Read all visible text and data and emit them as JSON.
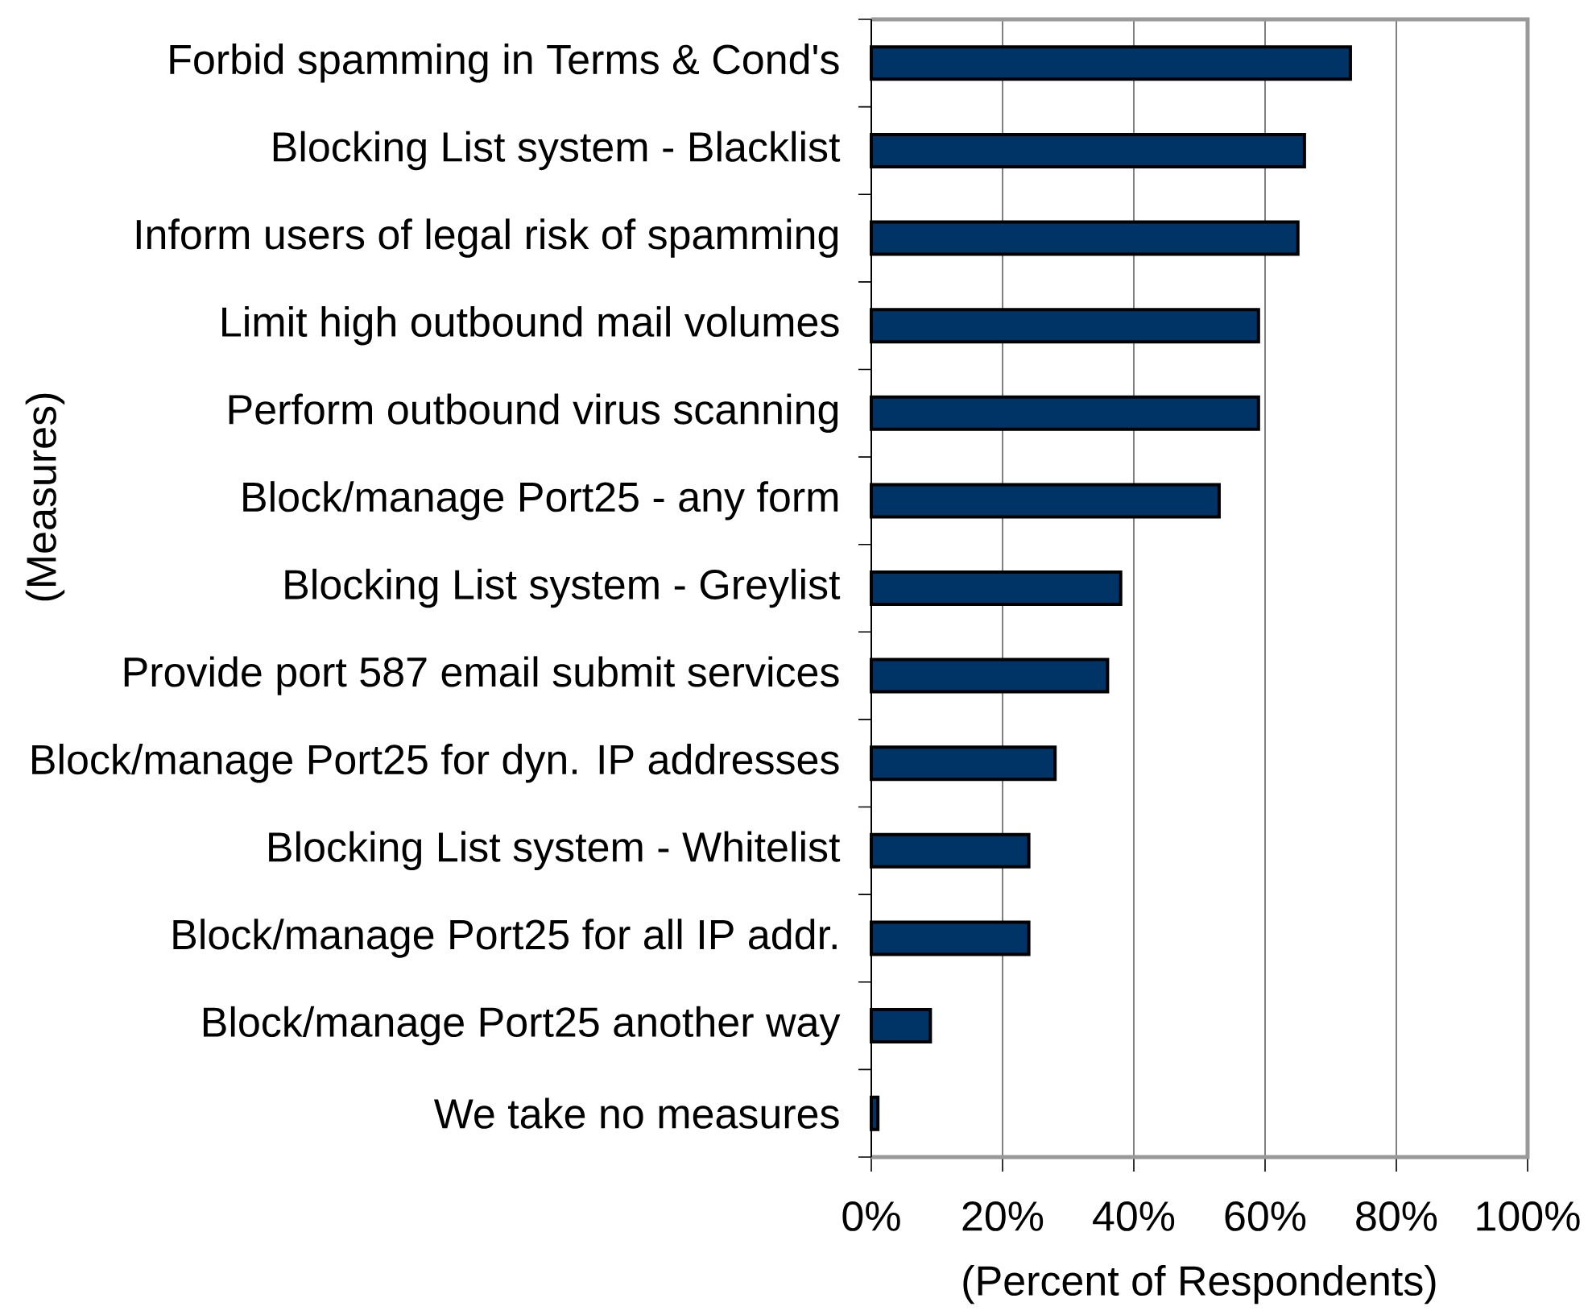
{
  "chart_data": {
    "type": "bar",
    "orientation": "horizontal",
    "xlabel": "(Percent of Respondents)",
    "ylabel": "(Measures)",
    "categories": [
      "Forbid spamming in Terms & Cond's",
      "Blocking List system - Blacklist",
      "Inform users of legal risk of spamming",
      "Limit high outbound mail volumes",
      "Perform outbound virus scanning",
      "Block/manage Port25 - any form",
      "Blocking List system - Greylist",
      "Provide port 587 email submit services",
      "Block/manage Port25 for dyn. IP addresses",
      "Blocking List system - Whitelist",
      "Block/manage Port25 for all IP addr.",
      "Block/manage Port25 another way",
      "We take no measures"
    ],
    "values": [
      73,
      66,
      65,
      59,
      59,
      53,
      38,
      36,
      28,
      24,
      24,
      9,
      1
    ],
    "color": "#003366",
    "xlim": [
      0,
      100
    ],
    "xticks": [
      {
        "value": 0,
        "label": "0%"
      },
      {
        "value": 20,
        "label": "20%"
      },
      {
        "value": 40,
        "label": "40%"
      },
      {
        "value": 60,
        "label": "60%"
      },
      {
        "value": 80,
        "label": "80%"
      },
      {
        "value": 100,
        "label": "100%"
      }
    ],
    "grid": "x"
  }
}
